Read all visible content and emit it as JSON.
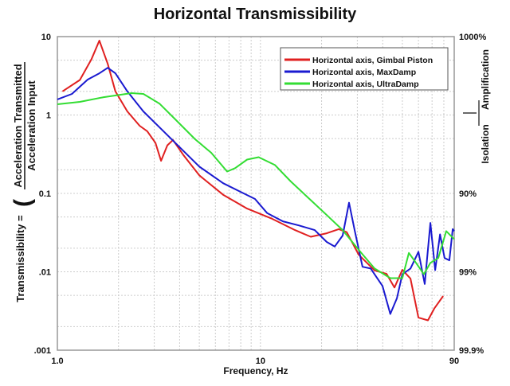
{
  "chart_data": {
    "type": "line",
    "title": "Horizontal Transmissibility",
    "xlabel": "Frequency, Hz",
    "ylabel_prefix": "Transmissibility =",
    "ylabel_numerator": "Acceleration Transmitted",
    "ylabel_denominator": "Acceleration Input",
    "x_scale": "log",
    "y_scale": "log",
    "xlim": [
      1,
      90
    ],
    "ylim": [
      0.001,
      10
    ],
    "grid": true,
    "legend_position": "top-right",
    "x_ticks": [
      {
        "value": 1,
        "label": "1.0"
      },
      {
        "value": 10,
        "label": "10"
      },
      {
        "value": 90,
        "label": "90"
      }
    ],
    "y_ticks": [
      {
        "value": 10,
        "label": "10"
      },
      {
        "value": 1,
        "label": "1"
      },
      {
        "value": 0.1,
        "label": "0.1"
      },
      {
        "value": 0.01,
        "label": ".01"
      },
      {
        "value": 0.001,
        "label": ".001"
      }
    ],
    "right_ticks": [
      {
        "value": 10,
        "label": "1000%"
      },
      {
        "value": 0.1,
        "label": "90%"
      },
      {
        "value": 0.01,
        "label": "99%"
      },
      {
        "value": 0.001,
        "label": "99.9%"
      }
    ],
    "right_labels": {
      "upper": "Amplification",
      "lower": "Isolation"
    },
    "series": [
      {
        "name": "Horizontal axis, Gimbal Piston",
        "color": "#e02020",
        "x": [
          1.06,
          1.29,
          1.47,
          1.61,
          1.77,
          1.93,
          2.21,
          2.54,
          2.77,
          3.04,
          3.24,
          3.48,
          3.71,
          4.17,
          5.0,
          6.55,
          8.6,
          11.3,
          14.8,
          17.7,
          21.2,
          24.3,
          26.6,
          30.5,
          36.5,
          41.8,
          45.7,
          50,
          54.8,
          60,
          66.8,
          71.8,
          79.4
        ],
        "y": [
          2.0,
          2.8,
          5.1,
          8.9,
          4.5,
          2.0,
          1.11,
          0.73,
          0.62,
          0.44,
          0.26,
          0.41,
          0.48,
          0.31,
          0.17,
          0.096,
          0.064,
          0.048,
          0.034,
          0.028,
          0.031,
          0.035,
          0.032,
          0.0165,
          0.0104,
          0.0094,
          0.0063,
          0.0106,
          0.0082,
          0.0026,
          0.0024,
          0.0034,
          0.0049
        ]
      },
      {
        "name": "Horizontal axis, MaxDamp",
        "color": "#1a1ad0",
        "x": [
          1.0,
          1.18,
          1.41,
          1.61,
          1.77,
          1.93,
          2.21,
          2.65,
          3.18,
          3.81,
          5.0,
          6.55,
          7.85,
          9.4,
          10.8,
          12.9,
          15.5,
          18.5,
          21.2,
          23.2,
          25.4,
          27.3,
          29.1,
          31.8,
          34.9,
          39.9,
          43.6,
          47,
          50,
          54.8,
          60,
          64.4,
          68.7,
          72.5,
          76.6,
          80.7,
          85.2,
          88.5,
          90
        ],
        "y": [
          1.58,
          1.86,
          2.83,
          3.4,
          4.0,
          3.4,
          2.0,
          1.11,
          0.7,
          0.44,
          0.22,
          0.135,
          0.107,
          0.085,
          0.056,
          0.044,
          0.039,
          0.034,
          0.024,
          0.021,
          0.029,
          0.076,
          0.034,
          0.0116,
          0.011,
          0.0066,
          0.0029,
          0.0046,
          0.0093,
          0.011,
          0.018,
          0.007,
          0.042,
          0.0105,
          0.03,
          0.015,
          0.014,
          0.035,
          0.033
        ]
      },
      {
        "name": "Horizontal axis, UltraDamp",
        "color": "#33dd33",
        "x": [
          1.0,
          1.29,
          1.69,
          2.32,
          2.65,
          3.18,
          3.81,
          4.77,
          5.72,
          6.85,
          7.5,
          8.6,
          9.8,
          11.8,
          14.1,
          17.7,
          21.2,
          25.4,
          30.5,
          36.5,
          43.6,
          50,
          53.8,
          58.4,
          63.8,
          68.7,
          75.1,
          82.2,
          90
        ],
        "y": [
          1.37,
          1.47,
          1.69,
          1.9,
          1.86,
          1.4,
          0.88,
          0.49,
          0.33,
          0.19,
          0.21,
          0.27,
          0.29,
          0.23,
          0.142,
          0.082,
          0.053,
          0.034,
          0.019,
          0.011,
          0.0083,
          0.0083,
          0.0174,
          0.013,
          0.0093,
          0.013,
          0.015,
          0.033,
          0.026
        ]
      }
    ]
  }
}
